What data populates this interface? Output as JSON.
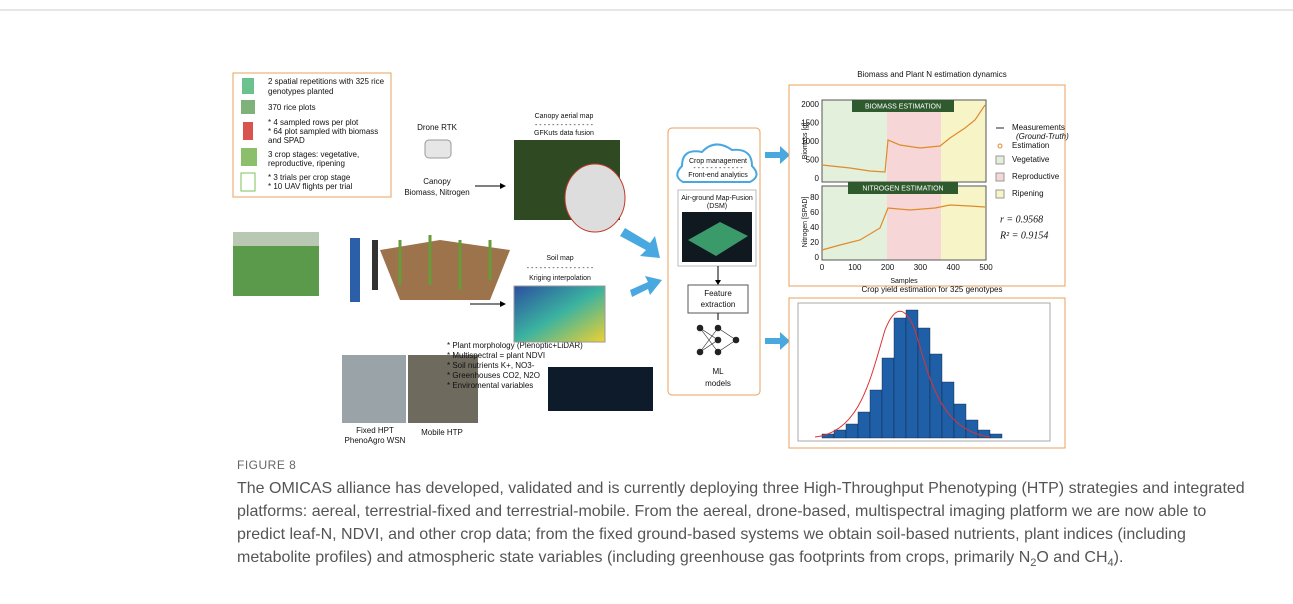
{
  "figure": {
    "left_panel": [
      "2 spatial repetitions with 325 rice",
      "genotypes planted",
      "370 rice plots",
      "* 4 sampled rows per plot",
      "* 64 plot sampled with biomass",
      "and SPAD",
      "3 crop stages: vegetative,",
      "reproductive, ripening",
      "* 3 trials per crop stage",
      "* 10 UAV flights per trial"
    ],
    "drone": {
      "title": "Drone RTK",
      "caption": [
        "Canopy",
        "Biomass, Nitrogen"
      ]
    },
    "canopy_map": {
      "title": "Canopy aerial map",
      "dashes": "- - - - - - - - - - - - - -",
      "subtitle": "GFKuts data fusion"
    },
    "soil_map": {
      "title": "Soil map",
      "dashes": "- - - - - - - - - - - - - - - -",
      "subtitle": "Kriging interpolation"
    },
    "sensors": [
      "* Plant morphology (Plenoptic+LiDAR)",
      "* Multispectral = plant NDVI",
      "* Soil nutrients K+, NO3-",
      "* Greenhouses CO2, N2O",
      "* Enviromental variables"
    ],
    "photos": {
      "fixed": [
        "Fixed HPT",
        "PhenoAgro WSN"
      ],
      "mobile": "Mobile HTP"
    },
    "pipeline": {
      "cloud": [
        "Crop management",
        "- - - - - - - - - - - -",
        "Front-end analytics"
      ],
      "fusion": [
        "Air-ground Map-Fusion",
        "(DSM)"
      ],
      "feature": [
        "Feature",
        "extraction"
      ],
      "ml": [
        "ML",
        "models"
      ]
    },
    "biomass_panel": {
      "title": "Biomass and Plant N estimation dynamics",
      "banner_biomass": "BIOMASS ESTIMATION",
      "banner_nitrogen": "NITROGEN ESTIMATION",
      "ylabel_biomass": "Biomass [g]",
      "ylabel_nitrogen": "Nitrogen [SPAD]",
      "xlabel": "Samples",
      "yticks_biomass": [
        "2000",
        "1500",
        "1000",
        "500",
        "0"
      ],
      "yticks_nitrogen": [
        "80",
        "60",
        "40",
        "20",
        "0"
      ],
      "xticks": [
        "0",
        "100",
        "200",
        "300",
        "400",
        "500"
      ],
      "legend": [
        "Measurements",
        "(Ground-Truth)",
        "Estimation",
        "Vegetative",
        "Reproductive",
        "Ripening"
      ],
      "stats": [
        "r = 0.9568",
        "R² = 0.9154"
      ]
    },
    "yield_panel": {
      "title": "Crop yield estimation for 325 genotypes"
    }
  },
  "caption": {
    "label": "FIGURE 8",
    "lines": [
      "The OMICAS alliance has developed, validated and is currently deploying three High-Throughput Phenotyping (HTP) strategies and integrated",
      "platforms: aereal, terrestrial-fixed and terrestrial-mobile. From the aereal, drone-based, multispectral imaging platform we are now able to",
      "predict leaf-N, NDVI, and other crop data; from the fixed ground-based systems we obtain soil-based nutrients, plant indices (including"
    ],
    "last_line": [
      "metabolite profiles) and atmospheric state variables (including greenhouse gas footprints from crops, primarily N",
      "2",
      "O and CH",
      "4",
      ")."
    ]
  }
}
